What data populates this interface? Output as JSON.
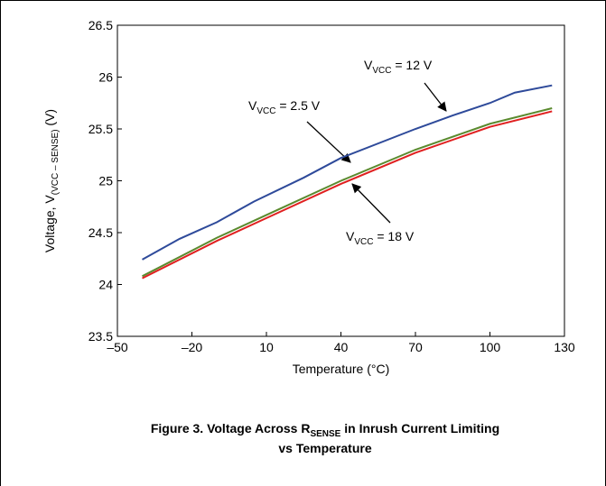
{
  "chart_data": {
    "type": "line",
    "x_label": "Temperature (°C)",
    "y_label": {
      "text": "Voltage, V",
      "sub": "(VCC – SENSE)",
      "rest": " (V)"
    },
    "caption": {
      "line1": "Figure 3. Voltage Across R",
      "sub": "SENSE",
      "line1_rest": " in Inrush Current Limiting",
      "line2": "vs Temperature"
    },
    "xlim": [
      -50,
      130
    ],
    "ylim": [
      23.5,
      26.5
    ],
    "xticks": [
      {
        "value": -50,
        "label": "–50"
      },
      {
        "value": -20,
        "label": "–20"
      },
      10,
      40,
      70,
      100,
      130
    ],
    "yticks": [
      23.5,
      24,
      24.5,
      25,
      25.5,
      26,
      26.5
    ],
    "grid": false,
    "series": [
      {
        "name": {
          "text": "V",
          "sub": "VCC",
          "rest": " = 2.5 V"
        },
        "color": "#2e4a9a",
        "x": [
          -40,
          -25,
          -10,
          5,
          25,
          40,
          70,
          85,
          100,
          110,
          125
        ],
        "values": [
          24.24,
          24.44,
          24.6,
          24.8,
          25.03,
          25.22,
          25.5,
          25.63,
          25.75,
          25.85,
          25.92
        ]
      },
      {
        "name": {
          "text": "V",
          "sub": "VCC",
          "rest": " = 12 V"
        },
        "color": "#5a8a2e",
        "x": [
          -40,
          -10,
          10,
          40,
          70,
          100,
          125
        ],
        "values": [
          24.08,
          24.45,
          24.67,
          25.0,
          25.3,
          25.55,
          25.7
        ]
      },
      {
        "name": {
          "text": "V",
          "sub": "VCC",
          "rest": " = 18 V"
        },
        "color": "#e02020",
        "x": [
          -40,
          -10,
          10,
          40,
          70,
          100,
          125
        ],
        "values": [
          24.06,
          24.42,
          24.64,
          24.97,
          25.27,
          25.52,
          25.67
        ]
      }
    ]
  }
}
